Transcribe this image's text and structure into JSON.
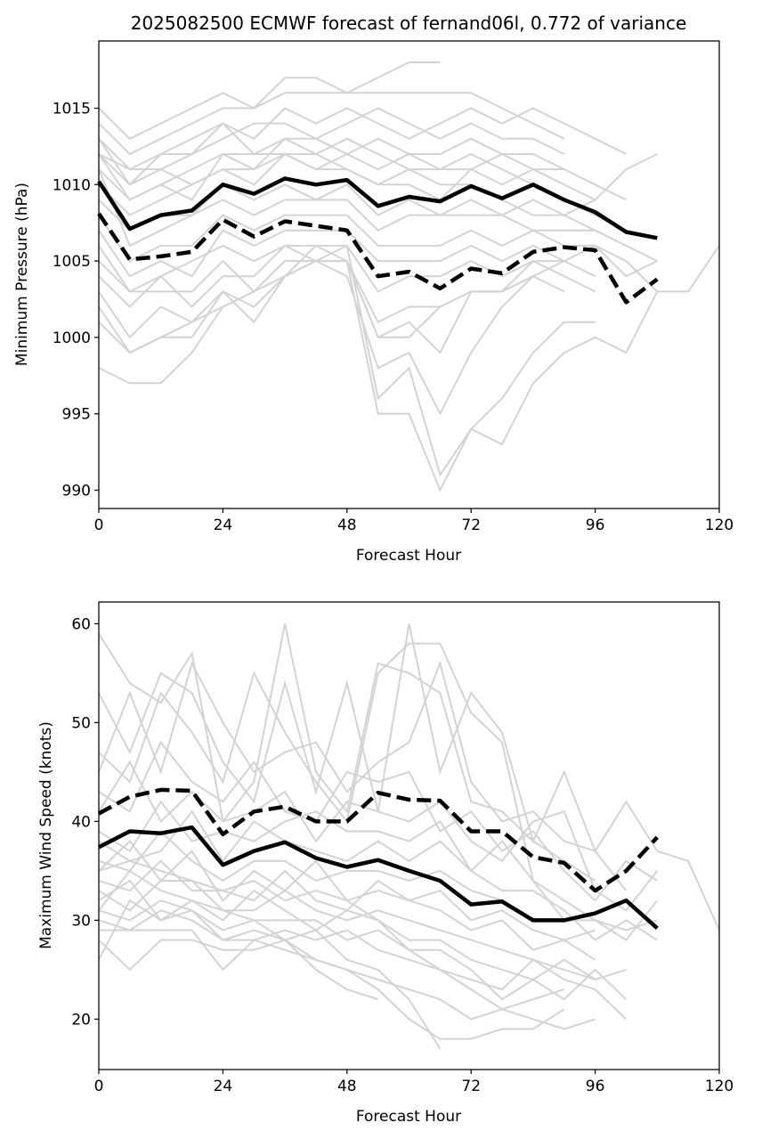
{
  "chart_data": [
    {
      "type": "line",
      "title": "2025082500 ECMWF forecast of fernand06l, 0.772 of variance",
      "xlabel": "Forecast Hour",
      "ylabel": "Minimum Pressure (hPa)",
      "xlim": [
        0,
        120
      ],
      "ylim": [
        988.8,
        1019.4
      ],
      "xticks": [
        0,
        24,
        48,
        72,
        96,
        120
      ],
      "yticks": [
        990,
        995,
        1000,
        1005,
        1010,
        1015
      ],
      "grid": false,
      "x": [
        0,
        6,
        12,
        18,
        24,
        30,
        36,
        42,
        48,
        54,
        60,
        66,
        72,
        78,
        84,
        90,
        96,
        102,
        108
      ],
      "series": [
        {
          "name": "ensemble mean",
          "style": "solid",
          "color": "#000000",
          "values": [
            1010.2,
            1007.1,
            1008.0,
            1008.3,
            1010.0,
            1009.4,
            1010.4,
            1010.0,
            1010.3,
            1008.6,
            1009.2,
            1008.9,
            1009.9,
            1009.1,
            1010.0,
            1009.0,
            1008.2,
            1006.9,
            1006.5
          ]
        },
        {
          "name": "weighted mean",
          "style": "dashed",
          "color": "#000000",
          "values": [
            1008.1,
            1005.1,
            1005.3,
            1005.6,
            1007.7,
            1006.6,
            1007.6,
            1007.3,
            1007.0,
            1004.0,
            1004.3,
            1003.2,
            1004.5,
            1004.2,
            1005.6,
            1005.9,
            1005.7,
            1002.3,
            1003.8
          ]
        }
      ],
      "members_color": "#d3d3d3",
      "members": [
        [
          1015,
          1013,
          1014,
          1015,
          1016,
          1015,
          1017,
          1017,
          1016,
          1017,
          1018,
          1018
        ],
        [
          1014,
          1012,
          1013,
          1014,
          1015,
          1015,
          1016,
          1016,
          1016,
          1016,
          1016,
          1016,
          1016,
          1015,
          1014,
          1013
        ],
        [
          1013,
          1011,
          1012,
          1013,
          1014,
          1013,
          1015,
          1014,
          1015,
          1014,
          1013,
          1014,
          1015,
          1014,
          1015,
          1014,
          1013,
          1012
        ],
        [
          1012,
          1010,
          1012,
          1012,
          1013,
          1014,
          1014,
          1013,
          1014,
          1015,
          1014,
          1013,
          1014,
          1013,
          1013,
          1012
        ],
        [
          1012,
          1011,
          1011,
          1012,
          1014,
          1012,
          1013,
          1013,
          1012,
          1013,
          1012,
          1012,
          1013,
          1012,
          1012,
          1011,
          1010,
          1009
        ],
        [
          1011,
          1009,
          1010,
          1011,
          1012,
          1012,
          1012,
          1011,
          1012,
          1011,
          1012,
          1011,
          1011,
          1012,
          1011,
          1011
        ],
        [
          1013,
          1010,
          1011,
          1010,
          1011,
          1011,
          1013,
          1012,
          1013,
          1012,
          1011,
          1011,
          1012,
          1011,
          1010,
          1009,
          1008,
          1007
        ],
        [
          1010,
          1008,
          1009,
          1010,
          1011,
          1010,
          1012,
          1011,
          1011,
          1010,
          1010,
          1009,
          1011,
          1010,
          1011,
          1010,
          1009
        ],
        [
          1012,
          1009,
          1010,
          1009,
          1012,
          1011,
          1012,
          1012,
          1011,
          1010,
          1011,
          1010,
          1010,
          1009,
          1008,
          1008,
          1009,
          1011,
          1012
        ],
        [
          1009,
          1007,
          1008,
          1008,
          1010,
          1009,
          1010,
          1009,
          1010,
          1008,
          1009,
          1008,
          1009,
          1008,
          1009,
          1008,
          1007,
          1006,
          1005
        ],
        [
          1011,
          1006,
          1007,
          1008,
          1009,
          1008,
          1009,
          1009,
          1009,
          1007,
          1008,
          1008,
          1008,
          1008,
          1007,
          1007,
          1007,
          1006
        ],
        [
          1008,
          1005,
          1006,
          1006,
          1008,
          1007,
          1008,
          1008,
          1008,
          1006,
          1006,
          1006,
          1007,
          1006,
          1007,
          1006,
          1006,
          1004,
          1005
        ],
        [
          1007,
          1004,
          1005,
          1004,
          1007,
          1006,
          1007,
          1007,
          1007,
          1005,
          1005,
          1005,
          1006,
          1005,
          1006,
          1005,
          1004
        ],
        [
          1006,
          1003,
          1004,
          1005,
          1006,
          1005,
          1006,
          1006,
          1006,
          1003,
          1004,
          1004,
          1005,
          1004,
          1005,
          1004,
          1003
        ],
        [
          1005,
          1003,
          1003,
          1003,
          1005,
          1003,
          1005,
          1005,
          1005,
          1001,
          1002,
          1002,
          1003,
          1003,
          1004
        ],
        [
          1004,
          1002,
          1004,
          1002,
          1004,
          1004,
          1006,
          1005,
          1005,
          1000,
          1001,
          999,
          1003,
          1003,
          1004,
          1003
        ],
        [
          1003,
          1000,
          1002,
          1001,
          1003,
          1001,
          1004,
          1005,
          1004,
          998,
          999,
          995,
          999,
          1002,
          1004,
          1005,
          1006,
          1005,
          1003,
          1003,
          1006
        ],
        [
          1002,
          999,
          1000,
          1001,
          1002,
          1003,
          1005,
          1005,
          1006,
          996,
          998,
          991,
          994,
          993,
          997,
          999,
          1000,
          999,
          1003
        ],
        [
          998,
          997,
          997,
          999,
          1002,
          1003,
          1004,
          1005,
          1005,
          995,
          995,
          990,
          994,
          996,
          999,
          1001,
          1001
        ],
        [
          1001,
          999,
          1000,
          1000,
          1003,
          1002,
          1004,
          1006,
          1005,
          1000,
          1000,
          1002,
          1003,
          1003,
          1005,
          1005
        ]
      ]
    },
    {
      "type": "line",
      "title": "",
      "xlabel": "Forecast Hour",
      "ylabel": "Maximum Wind Speed (knots)",
      "xlim": [
        0,
        120
      ],
      "ylim": [
        14.9,
        62.2
      ],
      "xticks": [
        0,
        24,
        48,
        72,
        96,
        120
      ],
      "yticks": [
        20,
        30,
        40,
        50,
        60
      ],
      "grid": false,
      "x": [
        0,
        6,
        12,
        18,
        24,
        30,
        36,
        42,
        48,
        54,
        60,
        66,
        72,
        78,
        84,
        90,
        96,
        102,
        108
      ],
      "series": [
        {
          "name": "ensemble mean",
          "style": "solid",
          "color": "#000000",
          "values": [
            37.4,
            39.0,
            38.8,
            39.4,
            35.6,
            37.0,
            37.9,
            36.3,
            35.4,
            36.1,
            35.0,
            34.0,
            31.6,
            31.9,
            30.0,
            30.0,
            30.7,
            32.0,
            29.2
          ]
        },
        {
          "name": "weighted mean",
          "style": "dashed",
          "color": "#000000",
          "values": [
            40.8,
            42.5,
            43.2,
            43.1,
            38.7,
            41.0,
            41.5,
            40.0,
            40.0,
            42.9,
            42.2,
            42.1,
            39.0,
            39.0,
            36.4,
            35.8,
            33.0,
            35.0,
            38.4
          ]
        }
      ],
      "members_color": "#d3d3d3",
      "members": [
        [
          59,
          54,
          52,
          57,
          40,
          44,
          60,
          45,
          41,
          56,
          55,
          53,
          42,
          41,
          38,
          36,
          34
        ],
        [
          53,
          47,
          55,
          53,
          46,
          42,
          54,
          43,
          54,
          41,
          60,
          45,
          53,
          49,
          38,
          45,
          37,
          42,
          37,
          36,
          29
        ],
        [
          47,
          44,
          53,
          49,
          44,
          55,
          49,
          44,
          40,
          55,
          58,
          58,
          51,
          48,
          34,
          30
        ],
        [
          45,
          53,
          45,
          56,
          50,
          45,
          47,
          48,
          43,
          46,
          48,
          56,
          44,
          40,
          41,
          38,
          37,
          33
        ],
        [
          43,
          41,
          48,
          44,
          42,
          46,
          41,
          40,
          45,
          44,
          45,
          39,
          41,
          37,
          39,
          35,
          32,
          36,
          34
        ],
        [
          41,
          46,
          40,
          43,
          40,
          41,
          43,
          38,
          42,
          41,
          40,
          42,
          38,
          36,
          40,
          41,
          33,
          31,
          35
        ],
        [
          39,
          37,
          42,
          38,
          39,
          38,
          40,
          41,
          39,
          39,
          38,
          40,
          35,
          38,
          34,
          32,
          30,
          29,
          30
        ],
        [
          38,
          36,
          37,
          41,
          36,
          40,
          38,
          37,
          36,
          38,
          36,
          38,
          35,
          33,
          33,
          31,
          28,
          30,
          28
        ],
        [
          36,
          35,
          39,
          36,
          34,
          36,
          36,
          34,
          35,
          35,
          34,
          35,
          33,
          32,
          30,
          30,
          30,
          28,
          32
        ],
        [
          35,
          38,
          34,
          37,
          32,
          35,
          33,
          36,
          32,
          33,
          32,
          33,
          30,
          31,
          29,
          28,
          29
        ],
        [
          34,
          33,
          36,
          33,
          33,
          32,
          35,
          32,
          31,
          34,
          32,
          31,
          29,
          30,
          27,
          28,
          26
        ],
        [
          33,
          31,
          34,
          34,
          31,
          31,
          33,
          31,
          30,
          31,
          30,
          29,
          28,
          27,
          26,
          25,
          24,
          25
        ],
        [
          32,
          34,
          30,
          32,
          30,
          33,
          31,
          29,
          31,
          30,
          28,
          28,
          26,
          25,
          24,
          26,
          24
        ],
        [
          31,
          30,
          32,
          31,
          29,
          30,
          30,
          30,
          28,
          29,
          27,
          27,
          25,
          22,
          24,
          22,
          25,
          22
        ],
        [
          30,
          29,
          31,
          30,
          28,
          28,
          29,
          28,
          29,
          27,
          26,
          25,
          24,
          23,
          26,
          24,
          23,
          20
        ],
        [
          29,
          29,
          29,
          29,
          25,
          28,
          27,
          26,
          25,
          24,
          23,
          22,
          20,
          21,
          20,
          19,
          20
        ],
        [
          28,
          25,
          28,
          28,
          27,
          27,
          28,
          25,
          23,
          22
        ],
        [
          26,
          32,
          30,
          31,
          28,
          29,
          28,
          26,
          25,
          23,
          20,
          18,
          18,
          19,
          19,
          21
        ],
        [
          31,
          35,
          33,
          32,
          31,
          30,
          28,
          29,
          26,
          25,
          22,
          17
        ],
        [
          35,
          36,
          35,
          34,
          33,
          34,
          32,
          33,
          32,
          30,
          27,
          25,
          23,
          21,
          22,
          23
        ]
      ]
    }
  ]
}
